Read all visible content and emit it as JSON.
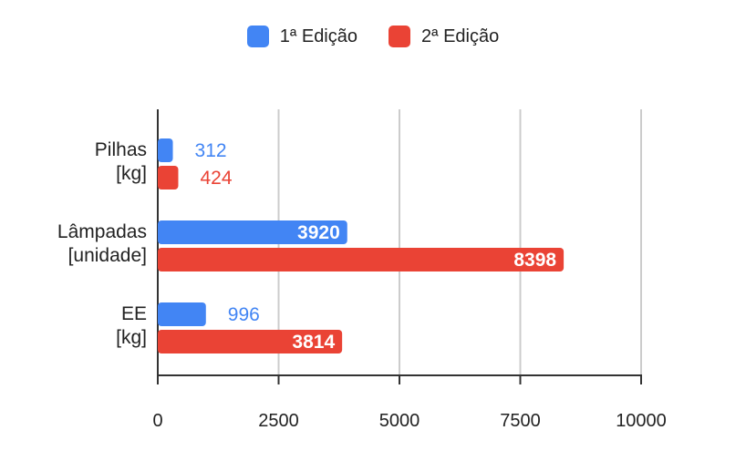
{
  "chart_data": {
    "type": "bar",
    "orientation": "horizontal",
    "categories": [
      [
        "Pilhas",
        "[kg]"
      ],
      [
        "Lâmpadas",
        "[unidade]"
      ],
      [
        "EE",
        "[kg]"
      ]
    ],
    "series": [
      {
        "name": "1ª Edição",
        "color": "#4285F4",
        "values": [
          312,
          3920,
          996
        ]
      },
      {
        "name": "2ª Edição",
        "color": "#EA4335",
        "values": [
          424,
          8398,
          3814
        ]
      }
    ],
    "xlim": [
      0,
      10000
    ],
    "xticks": [
      0,
      2500,
      5000,
      7500,
      10000
    ],
    "legend": "top-center",
    "grid": true,
    "data_labels": true
  }
}
